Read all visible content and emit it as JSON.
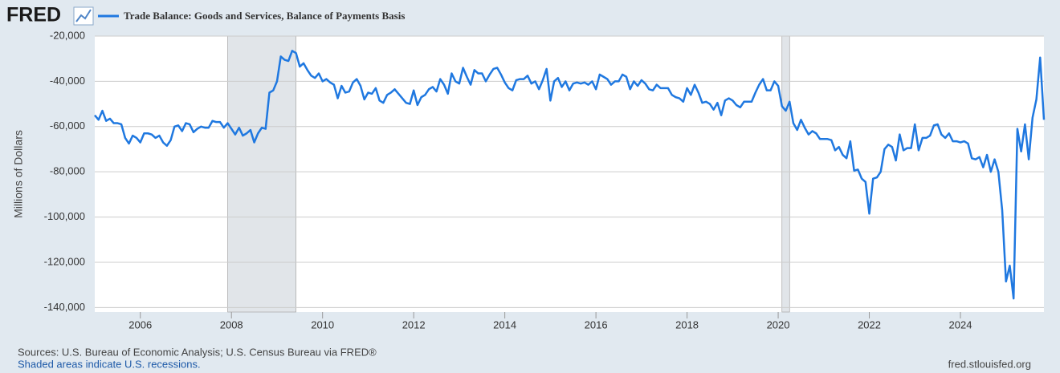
{
  "logo": "FRED",
  "footer": {
    "source": "Sources: U.S. Bureau of Economic Analysis; U.S. Census Bureau via FRED®",
    "note": "Shaded areas indicate U.S. recessions.",
    "url": "fred.stlouisfed.org"
  },
  "chart_data": {
    "type": "line",
    "y_label": "Millions of Dollars",
    "recessions": [
      [
        2007.917,
        2009.417
      ],
      [
        2020.083,
        2020.25
      ]
    ],
    "xlim": [
      2005,
      2025.833
    ],
    "xticks": [
      2006,
      2008,
      2010,
      2012,
      2014,
      2016,
      2018,
      2020,
      2022,
      2024
    ],
    "ylim": [
      -142000,
      -20000
    ],
    "yticks": [
      {
        "value": -20000,
        "label": "-20,000"
      },
      {
        "value": -40000,
        "label": "-40,000"
      },
      {
        "value": -60000,
        "label": "-60,000"
      },
      {
        "value": -80000,
        "label": "-80,000"
      },
      {
        "value": -100000,
        "label": "-100,000"
      },
      {
        "value": -120000,
        "label": "-120,000"
      },
      {
        "value": -140000,
        "label": "-140,000"
      }
    ],
    "grid": true,
    "x": [
      2005,
      2005.083,
      2005.167,
      2005.25,
      2005.333,
      2005.417,
      2005.5,
      2005.583,
      2005.667,
      2005.75,
      2005.833,
      2005.917,
      2006,
      2006.083,
      2006.167,
      2006.25,
      2006.333,
      2006.417,
      2006.5,
      2006.583,
      2006.667,
      2006.75,
      2006.833,
      2006.917,
      2007,
      2007.083,
      2007.167,
      2007.25,
      2007.333,
      2007.417,
      2007.5,
      2007.583,
      2007.667,
      2007.75,
      2007.833,
      2007.917,
      2008,
      2008.083,
      2008.167,
      2008.25,
      2008.333,
      2008.417,
      2008.5,
      2008.583,
      2008.667,
      2008.75,
      2008.833,
      2008.917,
      2009,
      2009.083,
      2009.167,
      2009.25,
      2009.333,
      2009.417,
      2009.5,
      2009.583,
      2009.667,
      2009.75,
      2009.833,
      2009.917,
      2010,
      2010.083,
      2010.167,
      2010.25,
      2010.333,
      2010.417,
      2010.5,
      2010.583,
      2010.667,
      2010.75,
      2010.833,
      2010.917,
      2011,
      2011.083,
      2011.167,
      2011.25,
      2011.333,
      2011.417,
      2011.5,
      2011.583,
      2011.667,
      2011.75,
      2011.833,
      2011.917,
      2012,
      2012.083,
      2012.167,
      2012.25,
      2012.333,
      2012.417,
      2012.5,
      2012.583,
      2012.667,
      2012.75,
      2012.833,
      2012.917,
      2013,
      2013.083,
      2013.167,
      2013.25,
      2013.333,
      2013.417,
      2013.5,
      2013.583,
      2013.667,
      2013.75,
      2013.833,
      2013.917,
      2014,
      2014.083,
      2014.167,
      2014.25,
      2014.333,
      2014.417,
      2014.5,
      2014.583,
      2014.667,
      2014.75,
      2014.833,
      2014.917,
      2015,
      2015.083,
      2015.167,
      2015.25,
      2015.333,
      2015.417,
      2015.5,
      2015.583,
      2015.667,
      2015.75,
      2015.833,
      2015.917,
      2016,
      2016.083,
      2016.167,
      2016.25,
      2016.333,
      2016.417,
      2016.5,
      2016.583,
      2016.667,
      2016.75,
      2016.833,
      2016.917,
      2017,
      2017.083,
      2017.167,
      2017.25,
      2017.333,
      2017.417,
      2017.5,
      2017.583,
      2017.667,
      2017.75,
      2017.833,
      2017.917,
      2018,
      2018.083,
      2018.167,
      2018.25,
      2018.333,
      2018.417,
      2018.5,
      2018.583,
      2018.667,
      2018.75,
      2018.833,
      2018.917,
      2019,
      2019.083,
      2019.167,
      2019.25,
      2019.333,
      2019.417,
      2019.5,
      2019.583,
      2019.667,
      2019.75,
      2019.833,
      2019.917,
      2020,
      2020.083,
      2020.167,
      2020.25,
      2020.333,
      2020.417,
      2020.5,
      2020.583,
      2020.667,
      2020.75,
      2020.833,
      2020.917,
      2021,
      2021.083,
      2021.167,
      2021.25,
      2021.333,
      2021.417,
      2021.5,
      2021.583,
      2021.667,
      2021.75,
      2021.833,
      2021.917,
      2022,
      2022.083,
      2022.167,
      2022.25,
      2022.333,
      2022.417,
      2022.5,
      2022.583,
      2022.667,
      2022.75,
      2022.833,
      2022.917,
      2023,
      2023.083,
      2023.167,
      2023.25,
      2023.333,
      2023.417,
      2023.5,
      2023.583,
      2023.667,
      2023.75,
      2023.833,
      2023.917,
      2024,
      2024.083,
      2024.167,
      2024.25,
      2024.333,
      2024.417,
      2024.5,
      2024.583,
      2024.667,
      2024.75,
      2024.833,
      2024.917,
      2025,
      2025.083,
      2025.167,
      2025.25,
      2025.333,
      2025.417,
      2025.5,
      2025.583,
      2025.667,
      2025.75,
      2025.833
    ],
    "series": [
      {
        "name": "Trade Balance: Goods and Services, Balance of Payments Basis",
        "color": "#1f78e0",
        "values": [
          -55000,
          -57000,
          -53000,
          -57500,
          -56500,
          -58500,
          -58500,
          -59000,
          -65000,
          -67500,
          -64000,
          -65000,
          -67000,
          -63000,
          -63000,
          -63500,
          -65000,
          -64000,
          -67000,
          -68500,
          -66000,
          -60000,
          -59500,
          -62000,
          -58500,
          -59000,
          -62500,
          -61000,
          -60000,
          -60500,
          -60500,
          -57500,
          -58000,
          -58000,
          -60500,
          -58500,
          -61000,
          -63500,
          -60500,
          -64000,
          -63000,
          -61500,
          -67000,
          -63000,
          -60500,
          -61000,
          -45000,
          -44000,
          -40000,
          -29000,
          -30500,
          -31000,
          -26500,
          -27500,
          -33500,
          -32000,
          -35000,
          -37500,
          -38500,
          -36500,
          -40000,
          -39000,
          -40500,
          -41500,
          -47500,
          -42000,
          -45000,
          -44500,
          -40500,
          -39000,
          -42000,
          -48000,
          -45000,
          -45500,
          -43000,
          -48500,
          -49500,
          -46000,
          -45000,
          -43500,
          -45500,
          -47500,
          -49500,
          -50000,
          -44000,
          -50500,
          -47000,
          -46000,
          -43500,
          -42500,
          -44500,
          -39000,
          -41500,
          -45500,
          -36500,
          -40000,
          -41000,
          -34000,
          -38000,
          -41500,
          -35000,
          -36500,
          -36500,
          -40000,
          -37000,
          -34500,
          -34000,
          -37000,
          -40500,
          -43000,
          -44000,
          -39500,
          -39000,
          -39000,
          -37500,
          -41000,
          -40000,
          -43500,
          -39500,
          -34500,
          -48500,
          -40000,
          -38500,
          -42500,
          -40000,
          -44000,
          -41000,
          -40500,
          -41000,
          -40500,
          -41500,
          -40000,
          -43500,
          -37000,
          -38000,
          -39000,
          -41500,
          -40000,
          -40000,
          -37000,
          -38000,
          -43500,
          -40000,
          -42000,
          -39500,
          -41000,
          -43500,
          -44000,
          -41500,
          -43000,
          -43000,
          -43000,
          -46000,
          -47000,
          -47500,
          -49000,
          -43000,
          -46000,
          -41500,
          -45000,
          -49500,
          -49000,
          -50000,
          -52500,
          -49500,
          -55000,
          -48500,
          -47500,
          -48500,
          -50500,
          -51500,
          -49000,
          -49000,
          -49000,
          -45000,
          -41500,
          -39000,
          -44000,
          -44000,
          -40000,
          -42000,
          -51000,
          -53000,
          -49000,
          -58500,
          -61500,
          -57000,
          -60500,
          -63500,
          -62000,
          -63000,
          -65500,
          -65500,
          -65500,
          -66000,
          -70500,
          -69000,
          -72500,
          -74000,
          -66500,
          -79500,
          -79000,
          -83000,
          -84500,
          -98500,
          -83000,
          -82500,
          -80000,
          -70000,
          -68000,
          -69000,
          -75000,
          -63500,
          -70500,
          -69500,
          -69500,
          -59000,
          -70500,
          -65000,
          -65000,
          -64000,
          -59500,
          -59000,
          -63500,
          -65000,
          -63000,
          -66500,
          -66500,
          -67000,
          -66500,
          -67500,
          -74000,
          -74500,
          -73500,
          -78000,
          -72500,
          -80000,
          -74500,
          -80000,
          -97000,
          -128500,
          -121500,
          -136000,
          -61000,
          -71000,
          -59000,
          -74500,
          -56000,
          -48000,
          -29500,
          -57000
        ]
      }
    ]
  }
}
